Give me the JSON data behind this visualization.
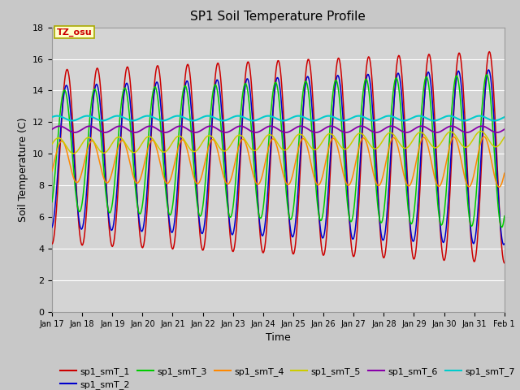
{
  "title": "SP1 Soil Temperature Profile",
  "xlabel": "Time",
  "ylabel": "Soil Temperature (C)",
  "ylim": [
    0,
    18
  ],
  "yticks": [
    0,
    2,
    4,
    6,
    8,
    10,
    12,
    14,
    16,
    18
  ],
  "tz_label": "TZ_osu",
  "series_colors": {
    "sp1_smT_1": "#cc0000",
    "sp1_smT_2": "#0000cc",
    "sp1_smT_3": "#00cc00",
    "sp1_smT_4": "#ff8800",
    "sp1_smT_5": "#cccc00",
    "sp1_smT_6": "#8800aa",
    "sp1_smT_7": "#00cccc"
  },
  "fig_facecolor": "#c8c8c8",
  "ax_facecolor": "#d4d4d4",
  "grid_color": "#ffffff"
}
